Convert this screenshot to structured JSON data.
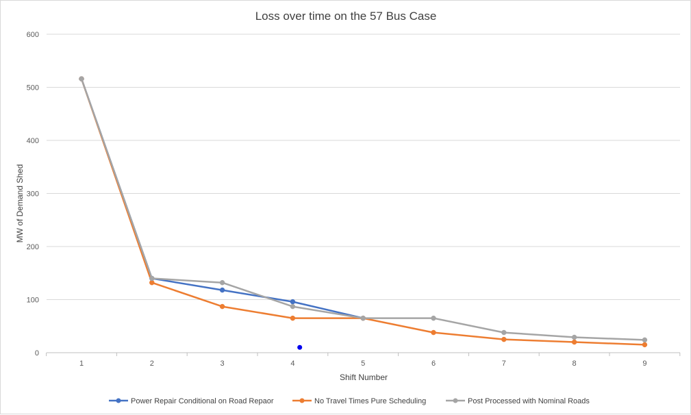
{
  "chart_data": {
    "type": "line",
    "title": "Loss over time on the 57 Bus Case",
    "xlabel": "Shift Number",
    "ylabel": "MW of Demand Shed",
    "x": [
      1,
      2,
      3,
      4,
      5,
      6,
      7,
      8,
      9
    ],
    "ylim": [
      0,
      600
    ],
    "yticks": [
      0,
      100,
      200,
      300,
      400,
      500,
      600
    ],
    "grid": true,
    "legend_position": "bottom",
    "series": [
      {
        "name": "Power Repair Conditional on Road Repaor",
        "color": "#4472c4",
        "values": [
          516,
          140,
          118,
          96,
          65,
          null,
          null,
          null,
          null
        ]
      },
      {
        "name": "No Travel Times Pure Scheduling",
        "color": "#ed7d31",
        "values": [
          516,
          132,
          87,
          65,
          65,
          38,
          25,
          20,
          15
        ]
      },
      {
        "name": "Post Processed with Nominal Roads",
        "color": "#a5a5a5",
        "values": [
          516,
          140,
          132,
          87,
          65,
          65,
          38,
          29,
          24
        ]
      }
    ],
    "annotations": [
      {
        "type": "point",
        "x": 4.1,
        "y": 10,
        "color": "#0000ee"
      }
    ]
  }
}
